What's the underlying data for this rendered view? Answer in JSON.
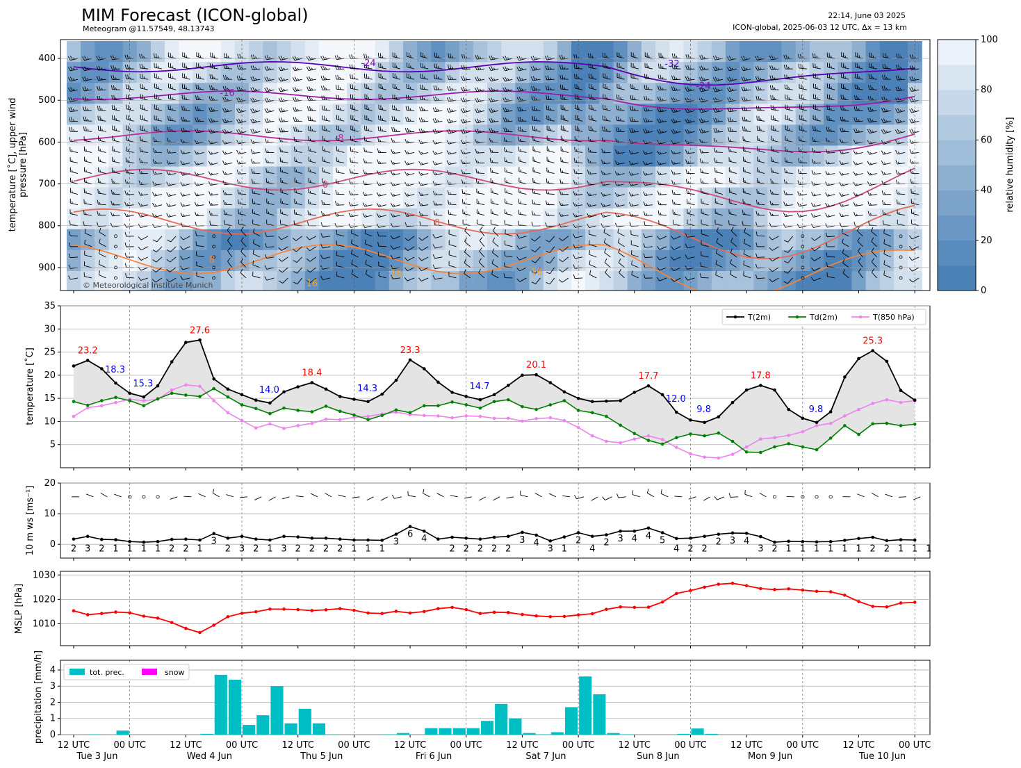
{
  "header": {
    "title": "MIM Forecast (ICON-global)",
    "subtitle": "Meteogram @11.57549, 48.13743",
    "timestamp": "22:14, June 03 2025",
    "model_info": "ICON-global, 2025-06-03 12 UTC, Δx = 13 km",
    "copyright": "© Meteorological Institute Munich"
  },
  "colors": {
    "t2m": "#000000",
    "td2m": "#008000",
    "t850": "#ee82ee",
    "mslp": "#ff0000",
    "precip": "#00bfc4",
    "snow": "#ff00ff",
    "max_label": "#ff0000",
    "min_label": "#0000ff",
    "fill_between": "#e4e4e4",
    "rh_dark": "#4b81b6",
    "rh_light": "#f4f8fc"
  },
  "chart_data": [
    {
      "type": "heatmap",
      "ylabel": "temperature [˚C], upper wind\npressure [hPa]",
      "y_ticks": [
        400,
        500,
        600,
        700,
        800,
        900
      ],
      "ylim": [
        955,
        355
      ],
      "colorbar": {
        "label": "relative humidity [%]",
        "ticks": [
          0,
          20,
          40,
          60,
          80,
          100
        ],
        "range": [
          0,
          100
        ]
      },
      "isotherm_labels": [
        {
          "value": "-32",
          "color": "#5b00b5"
        },
        {
          "value": "-24",
          "color": "#7a0fb8"
        },
        {
          "value": "-24",
          "color": "#7a0fb8"
        },
        {
          "value": "-16",
          "color": "#9c1bab"
        },
        {
          "value": "-8",
          "color": "#b82f95"
        },
        {
          "value": "0",
          "color": "#cf4a78"
        },
        {
          "value": "8",
          "color": "#e86b55"
        },
        {
          "value": "8",
          "color": "#f5853a"
        },
        {
          "value": "16",
          "color": "#f9a02a"
        },
        {
          "value": "16",
          "color": "#f9a02a"
        },
        {
          "value": "16",
          "color": "#f9a02a"
        }
      ]
    },
    {
      "type": "line",
      "ylabel": "temperature [˚C]",
      "y_ticks": [
        5,
        10,
        15,
        20,
        25,
        30,
        35
      ],
      "ylim": [
        0,
        35
      ],
      "series": [
        {
          "name": "T(2m)",
          "values": [
            22.0,
            23.2,
            21.4,
            18.3,
            16.1,
            15.3,
            17.7,
            22.9,
            27.1,
            27.6,
            19.2,
            17.0,
            15.8,
            14.6,
            14.0,
            16.4,
            17.5,
            18.4,
            17.0,
            15.4,
            14.8,
            14.3,
            15.9,
            18.9,
            23.3,
            21.4,
            18.5,
            16.3,
            15.4,
            14.7,
            15.8,
            17.8,
            20.0,
            20.1,
            18.4,
            16.4,
            15.0,
            14.3,
            14.4,
            14.5,
            16.3,
            17.7,
            15.8,
            12.0,
            10.3,
            9.8,
            11.0,
            14.1,
            16.8,
            17.8,
            16.8,
            12.6,
            10.7,
            9.8,
            12.1,
            19.6,
            23.6,
            25.3,
            23.0,
            16.7,
            14.6
          ]
        },
        {
          "name": "Td(2m)",
          "values": [
            14.3,
            13.5,
            14.5,
            15.2,
            14.5,
            13.4,
            14.9,
            16.1,
            15.7,
            15.4,
            17.1,
            15.3,
            13.6,
            12.8,
            11.7,
            12.9,
            12.4,
            12.1,
            13.3,
            12.2,
            11.4,
            10.4,
            11.3,
            12.5,
            11.9,
            13.4,
            13.4,
            14.2,
            13.6,
            12.9,
            14.3,
            14.7,
            13.2,
            12.6,
            13.6,
            14.5,
            12.4,
            11.9,
            11.1,
            9.2,
            7.4,
            5.9,
            5.1,
            6.5,
            7.3,
            6.9,
            7.5,
            5.7,
            3.4,
            3.3,
            4.5,
            5.2,
            4.5,
            3.9,
            6.4,
            9.1,
            7.2,
            9.5,
            9.6,
            9.1,
            9.4
          ]
        },
        {
          "name": "T(850 hPa)",
          "values": [
            11.1,
            13.0,
            13.4,
            14.1,
            14.8,
            14.5,
            14.8,
            16.8,
            17.9,
            17.6,
            14.5,
            11.9,
            10.2,
            8.6,
            9.5,
            8.5,
            9.1,
            9.6,
            10.5,
            10.4,
            10.9,
            11.1,
            11.6,
            12.0,
            11.5,
            11.3,
            11.2,
            10.8,
            11.2,
            11.1,
            10.7,
            10.7,
            10.1,
            10.6,
            10.8,
            10.2,
            8.7,
            6.9,
            5.7,
            5.4,
            6.2,
            6.9,
            6.1,
            4.4,
            3.0,
            2.3,
            2.1,
            2.9,
            4.5,
            6.2,
            6.5,
            7.0,
            7.8,
            9.1,
            9.6,
            11.2,
            12.6,
            13.9,
            14.7,
            14.1,
            14.5
          ]
        }
      ],
      "max_labels": [
        {
          "value": "23.2",
          "index": 1
        },
        {
          "value": "27.6",
          "index": 9
        },
        {
          "value": "18.4",
          "index": 17
        },
        {
          "value": "23.3",
          "index": 24
        },
        {
          "value": "20.1",
          "index": 33
        },
        {
          "value": "17.7",
          "index": 41
        },
        {
          "value": "17.8",
          "index": 49
        },
        {
          "value": "25.3",
          "index": 57
        }
      ],
      "min_labels": [
        {
          "value": "18.3",
          "index": 3
        },
        {
          "value": "15.3",
          "index": 5
        },
        {
          "value": "14.0",
          "index": 14
        },
        {
          "value": "14.3",
          "index": 21
        },
        {
          "value": "14.7",
          "index": 29
        },
        {
          "value": "12.0",
          "index": 43
        },
        {
          "value": "9.8",
          "index": 45
        },
        {
          "value": "9.8",
          "index": 53
        }
      ],
      "legend": "top-right"
    },
    {
      "type": "line",
      "ylabel": "10 m ws [ms⁻¹]",
      "y_ticks": [
        0,
        10,
        20
      ],
      "ylim": [
        -4.5,
        20
      ],
      "series": [
        {
          "name": "10 m ws",
          "values": [
            1.7,
            2.6,
            1.6,
            1.5,
            0.9,
            0.7,
            0.9,
            1.6,
            1.7,
            1.4,
            3.5,
            2.0,
            2.6,
            1.7,
            1.4,
            2.6,
            2.4,
            2.0,
            2.0,
            1.7,
            1.4,
            1.4,
            1.3,
            3.3,
            5.8,
            4.3,
            1.7,
            2.3,
            2.0,
            1.7,
            2.3,
            2.6,
            3.9,
            3.0,
            1.1,
            2.4,
            3.8,
            2.6,
            3.1,
            4.3,
            4.3,
            5.3,
            3.8,
            1.9,
            2.0,
            2.6,
            3.3,
            3.7,
            3.6,
            2.5,
            0.7,
            1.0,
            0.9,
            0.8,
            0.9,
            1.3,
            1.9,
            2.3,
            1.2,
            1.5,
            1.4
          ]
        }
      ],
      "beaufort": [
        "2",
        "3",
        "2",
        "1",
        "1",
        "1",
        "1",
        "2",
        "2",
        "1",
        "3",
        "2",
        "3",
        "2",
        "1",
        "3",
        "2",
        "2",
        "2",
        "2",
        "1",
        "1",
        "1",
        "3",
        "6",
        "4",
        "",
        "2",
        "2",
        "2",
        "2",
        "2",
        "3",
        "4",
        "3",
        "1",
        "2",
        "4",
        "2",
        "3",
        "4",
        "4",
        "5",
        "4",
        "2",
        "2",
        "2",
        "3",
        "4",
        "3",
        "2",
        "1",
        "1",
        "1",
        "1",
        "1",
        "1",
        "2",
        "2",
        "1",
        "1",
        "1"
      ]
    },
    {
      "type": "line",
      "ylabel": "MSLP [hPa]",
      "y_ticks": [
        1010,
        1020,
        1030
      ],
      "ylim": [
        1001,
        1031.5
      ],
      "series": [
        {
          "name": "MSLP",
          "values": [
            1015.3,
            1013.7,
            1014.2,
            1014.8,
            1014.5,
            1013.1,
            1012.3,
            1010.5,
            1008.1,
            1006.4,
            1009.4,
            1012.9,
            1014.3,
            1014.9,
            1016.0,
            1016.0,
            1015.8,
            1015.4,
            1015.7,
            1016.2,
            1015.5,
            1014.4,
            1014.2,
            1015.1,
            1014.4,
            1015.0,
            1016.2,
            1016.7,
            1015.8,
            1014.2,
            1014.7,
            1014.6,
            1013.8,
            1013.2,
            1012.9,
            1013.0,
            1013.6,
            1014.1,
            1015.9,
            1016.9,
            1016.7,
            1016.8,
            1018.9,
            1022.4,
            1023.6,
            1025.0,
            1026.2,
            1026.6,
            1025.6,
            1024.4,
            1024.0,
            1024.3,
            1023.8,
            1023.3,
            1023.1,
            1021.7,
            1019.1,
            1017.1,
            1016.9,
            1018.5,
            1018.8
          ]
        }
      ]
    },
    {
      "type": "bar",
      "ylabel": "precipitation [mm/h]",
      "y_ticks": [
        0,
        1,
        2,
        3,
        4
      ],
      "ylim": [
        0,
        4.6
      ],
      "series": [
        {
          "name": "tot. prec.",
          "values": [
            0,
            0.02,
            0,
            0.25,
            0,
            0,
            0,
            0,
            0,
            0.05,
            3.7,
            3.4,
            0.6,
            1.2,
            3.0,
            0.7,
            1.6,
            0.7,
            0.01,
            0,
            0,
            0,
            0.02,
            0.1,
            0,
            0.4,
            0.4,
            0.4,
            0.4,
            0.85,
            1.9,
            1.0,
            0.1,
            0.02,
            0.15,
            1.7,
            3.6,
            2.5,
            0.1,
            0.02,
            0,
            0,
            0,
            0.05,
            0.38,
            0.05,
            0,
            0,
            0,
            0,
            0,
            0,
            0,
            0,
            0,
            0,
            0,
            0,
            0,
            0
          ]
        },
        {
          "name": "snow",
          "values": [
            0,
            0,
            0,
            0,
            0,
            0,
            0,
            0,
            0,
            0,
            0,
            0,
            0,
            0,
            0,
            0,
            0,
            0,
            0,
            0,
            0,
            0,
            0,
            0,
            0,
            0,
            0,
            0,
            0,
            0,
            0,
            0,
            0,
            0,
            0,
            0,
            0,
            0,
            0,
            0,
            0,
            0,
            0,
            0,
            0,
            0,
            0,
            0,
            0,
            0,
            0,
            0,
            0,
            0,
            0,
            0,
            0,
            0,
            0,
            0
          ]
        }
      ],
      "legend": "top-left"
    }
  ],
  "time_axis": {
    "tick_labels": [
      "12 UTC",
      "00 UTC",
      "12 UTC",
      "00 UTC",
      "12 UTC",
      "00 UTC",
      "12 UTC",
      "00 UTC",
      "12 UTC",
      "00 UTC",
      "12 UTC",
      "00 UTC",
      "12 UTC",
      "00 UTC",
      "12 UTC",
      "00 UTC"
    ],
    "day_labels": [
      "Tue 3 Jun",
      "Wed 4 Jun",
      "Thu 5 Jun",
      "Fri 6 Jun",
      "Sat 7 Jun",
      "Sun 8 Jun",
      "Mon 9 Jun",
      "Tue 10 Jun"
    ],
    "step_hours": 3,
    "n_steps": 61
  }
}
